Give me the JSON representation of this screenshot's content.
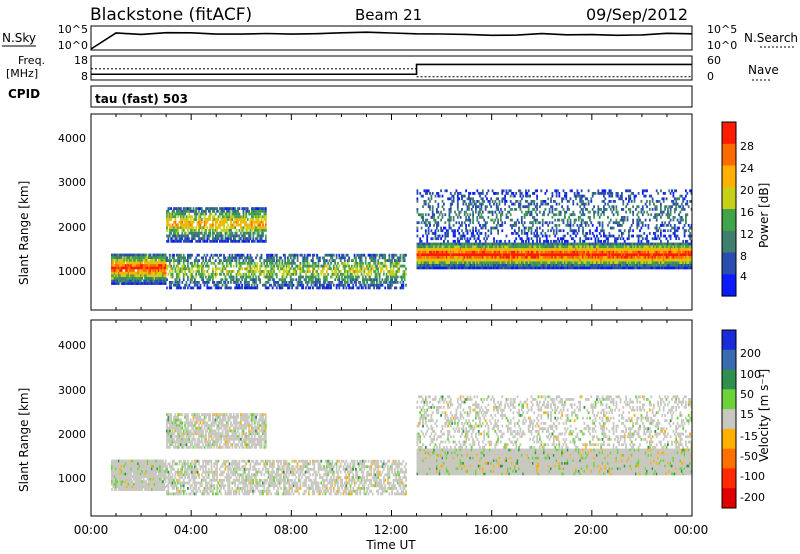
{
  "header": {
    "station": "Blackstone (fitACF)",
    "beam": "Beam 21",
    "date": "09/Sep/2012"
  },
  "chart_data": [
    {
      "type": "line",
      "panel": "noise",
      "left_label": "N.Sky",
      "right_label": "N.Search",
      "left_ticks": [
        "10^5",
        "10^0"
      ],
      "right_ticks": [
        "10^5",
        "10^0"
      ],
      "series": [
        {
          "name": "N.Sky",
          "values": [
            0,
            3.4,
            3.5,
            3.6,
            3.55,
            3.5,
            3.4,
            3.45,
            3.5,
            3.6,
            3.7,
            3.9,
            3.7,
            3.6,
            3.3,
            3.25,
            3.2,
            3.25,
            3.3,
            3.3,
            3.25,
            3.3,
            3.35,
            3.4,
            3.45
          ]
        }
      ]
    },
    {
      "type": "line",
      "panel": "frequency",
      "left_label_lines": [
        "Freq.",
        "[MHz]"
      ],
      "right_label": "Nave",
      "left_ticks": [
        "18",
        "8"
      ],
      "right_ticks": [
        "60",
        "0"
      ],
      "frequency_steps": [
        {
          "from_hour": 0.0,
          "to_hour": 13.0,
          "value": 10.4
        },
        {
          "from_hour": 13.0,
          "to_hour": 24.0,
          "value": 14.5
        }
      ],
      "nave_steps": [
        {
          "from_hour": 0.0,
          "to_hour": 13.0,
          "value": 28
        },
        {
          "from_hour": 13.0,
          "to_hour": 24.0,
          "value": 8
        }
      ]
    },
    {
      "type": "heatmap",
      "panel": "power",
      "cpid_label": "CPID",
      "cpid_text": "tau (fast) 503",
      "ylabel": "Slant Range [km]",
      "ylim": [
        180,
        4600
      ],
      "yticks": [
        "1000",
        "2000",
        "3000",
        "4000"
      ],
      "colorbar_label": "Power [dB]",
      "colorbar_ticks": [
        "28",
        "24",
        "20",
        "16",
        "12",
        "8",
        "4"
      ],
      "colors": [
        "#0a1cff",
        "#2a4cae",
        "#3f7f6e",
        "#42a44a",
        "#c8cf18",
        "#ffb000",
        "#ff6a00",
        "#ff1c00"
      ],
      "bands": [
        {
          "name": "core",
          "from": 0.8,
          "to": 3.0,
          "range": [
            750,
            1450
          ],
          "intensity": 0.82
        },
        {
          "name": "tail",
          "from": 3.0,
          "to": 12.6,
          "range": [
            650,
            1450
          ],
          "intensity": 0.45
        },
        {
          "name": "upper",
          "from": 3.0,
          "to": 7.0,
          "range": [
            1700,
            2500
          ],
          "intensity": 0.6
        },
        {
          "name": "late",
          "from": 13.0,
          "to": 24.0,
          "range": [
            1100,
            1700
          ],
          "intensity": 0.85
        },
        {
          "name": "sparse",
          "from": 13.0,
          "to": 24.0,
          "range": [
            1700,
            2900
          ],
          "intensity": 0.18
        }
      ]
    },
    {
      "type": "heatmap",
      "panel": "velocity",
      "ylabel": "Slant Range [km]",
      "ylim": [
        180,
        4600
      ],
      "yticks": [
        "1000",
        "2000",
        "3000",
        "4000"
      ],
      "colorbar_label": "Velocity [m s⁻¹]",
      "colorbar_ticks": [
        "200",
        "100",
        "50",
        "15",
        "-15",
        "-50",
        "-100",
        "-200"
      ],
      "colors": [
        "#1a2cd8",
        "#3a6bb0",
        "#2f8f4f",
        "#6bd23a",
        "#c8c8c0",
        "#ffb000",
        "#ff7000",
        "#ff2a00",
        "#e00000"
      ],
      "xlabel": "Time UT",
      "xticks": [
        "00:00",
        "04:00",
        "08:00",
        "12:00",
        "16:00",
        "20:00",
        "00:00"
      ]
    }
  ]
}
